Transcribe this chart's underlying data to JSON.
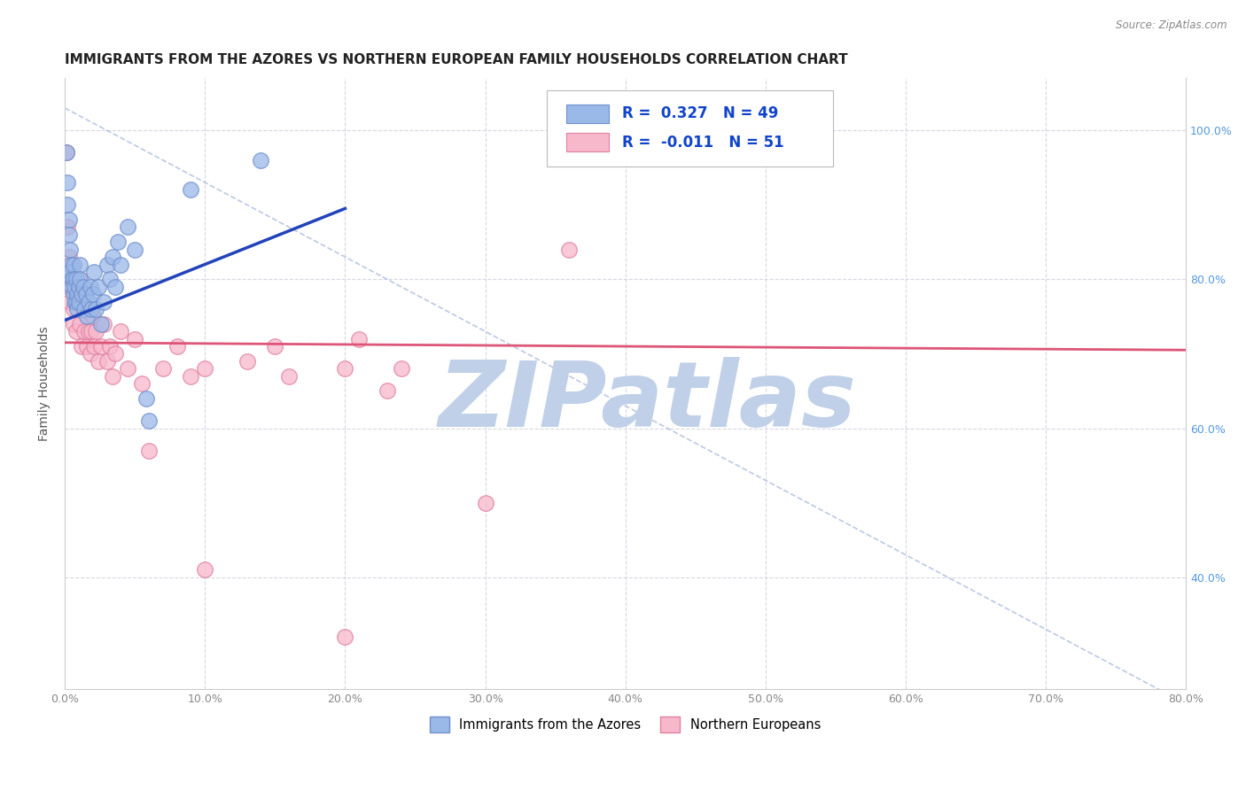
{
  "title": "IMMIGRANTS FROM THE AZORES VS NORTHERN EUROPEAN FAMILY HOUSEHOLDS CORRELATION CHART",
  "source": "Source: ZipAtlas.com",
  "ylabel": "Family Households",
  "legend_labels": [
    "Immigrants from the Azores",
    "Northern Europeans"
  ],
  "r_blue": 0.327,
  "n_blue": 49,
  "r_pink": -0.011,
  "n_pink": 51,
  "xlim": [
    0.0,
    0.8
  ],
  "ylim": [
    0.25,
    1.07
  ],
  "xticks": [
    0.0,
    0.1,
    0.2,
    0.3,
    0.4,
    0.5,
    0.6,
    0.7,
    0.8
  ],
  "yticks_right": [
    0.4,
    0.6,
    0.8,
    1.0
  ],
  "yticks_grid": [
    0.4,
    0.6,
    0.8,
    1.0
  ],
  "blue_color": "#9ab8e8",
  "blue_edge_color": "#7090cc",
  "pink_color": "#f8b8cc",
  "pink_edge_color": "#e080a0",
  "blue_line_color": "#2244bb",
  "pink_line_color": "#dd5577",
  "diag_line_color": "#aabbdd",
  "blue_scatter": [
    [
      0.001,
      0.97
    ],
    [
      0.002,
      0.93
    ],
    [
      0.002,
      0.9
    ],
    [
      0.003,
      0.88
    ],
    [
      0.003,
      0.86
    ],
    [
      0.004,
      0.84
    ],
    [
      0.004,
      0.82
    ],
    [
      0.004,
      0.81
    ],
    [
      0.005,
      0.8
    ],
    [
      0.005,
      0.79
    ],
    [
      0.006,
      0.82
    ],
    [
      0.006,
      0.8
    ],
    [
      0.006,
      0.78
    ],
    [
      0.007,
      0.79
    ],
    [
      0.007,
      0.77
    ],
    [
      0.008,
      0.8
    ],
    [
      0.008,
      0.77
    ],
    [
      0.009,
      0.78
    ],
    [
      0.009,
      0.76
    ],
    [
      0.01,
      0.79
    ],
    [
      0.01,
      0.77
    ],
    [
      0.011,
      0.82
    ],
    [
      0.011,
      0.8
    ],
    [
      0.012,
      0.78
    ],
    [
      0.013,
      0.79
    ],
    [
      0.014,
      0.76
    ],
    [
      0.015,
      0.78
    ],
    [
      0.016,
      0.75
    ],
    [
      0.017,
      0.77
    ],
    [
      0.018,
      0.79
    ],
    [
      0.019,
      0.76
    ],
    [
      0.02,
      0.78
    ],
    [
      0.021,
      0.81
    ],
    [
      0.022,
      0.76
    ],
    [
      0.024,
      0.79
    ],
    [
      0.026,
      0.74
    ],
    [
      0.028,
      0.77
    ],
    [
      0.03,
      0.82
    ],
    [
      0.032,
      0.8
    ],
    [
      0.034,
      0.83
    ],
    [
      0.036,
      0.79
    ],
    [
      0.038,
      0.85
    ],
    [
      0.04,
      0.82
    ],
    [
      0.045,
      0.87
    ],
    [
      0.05,
      0.84
    ],
    [
      0.058,
      0.64
    ],
    [
      0.06,
      0.61
    ],
    [
      0.09,
      0.92
    ],
    [
      0.14,
      0.96
    ]
  ],
  "pink_scatter": [
    [
      0.001,
      0.97
    ],
    [
      0.002,
      0.87
    ],
    [
      0.003,
      0.83
    ],
    [
      0.004,
      0.79
    ],
    [
      0.004,
      0.77
    ],
    [
      0.005,
      0.82
    ],
    [
      0.006,
      0.76
    ],
    [
      0.006,
      0.74
    ],
    [
      0.007,
      0.78
    ],
    [
      0.008,
      0.73
    ],
    [
      0.009,
      0.77
    ],
    [
      0.01,
      0.8
    ],
    [
      0.011,
      0.74
    ],
    [
      0.012,
      0.71
    ],
    [
      0.013,
      0.76
    ],
    [
      0.014,
      0.73
    ],
    [
      0.015,
      0.76
    ],
    [
      0.016,
      0.71
    ],
    [
      0.017,
      0.73
    ],
    [
      0.018,
      0.7
    ],
    [
      0.019,
      0.73
    ],
    [
      0.02,
      0.75
    ],
    [
      0.021,
      0.71
    ],
    [
      0.022,
      0.73
    ],
    [
      0.024,
      0.69
    ],
    [
      0.026,
      0.71
    ],
    [
      0.028,
      0.74
    ],
    [
      0.03,
      0.69
    ],
    [
      0.032,
      0.71
    ],
    [
      0.034,
      0.67
    ],
    [
      0.036,
      0.7
    ],
    [
      0.04,
      0.73
    ],
    [
      0.045,
      0.68
    ],
    [
      0.05,
      0.72
    ],
    [
      0.055,
      0.66
    ],
    [
      0.06,
      0.57
    ],
    [
      0.07,
      0.68
    ],
    [
      0.08,
      0.71
    ],
    [
      0.09,
      0.67
    ],
    [
      0.1,
      0.68
    ],
    [
      0.13,
      0.69
    ],
    [
      0.15,
      0.71
    ],
    [
      0.16,
      0.67
    ],
    [
      0.2,
      0.68
    ],
    [
      0.21,
      0.72
    ],
    [
      0.23,
      0.65
    ],
    [
      0.24,
      0.68
    ],
    [
      0.36,
      0.84
    ],
    [
      0.1,
      0.41
    ],
    [
      0.3,
      0.5
    ],
    [
      0.2,
      0.32
    ]
  ],
  "watermark": "ZIPatlas",
  "watermark_color": "#c0d0e8",
  "background_color": "#ffffff",
  "grid_color": "#ccccdd",
  "title_fontsize": 11,
  "axis_label_fontsize": 10
}
